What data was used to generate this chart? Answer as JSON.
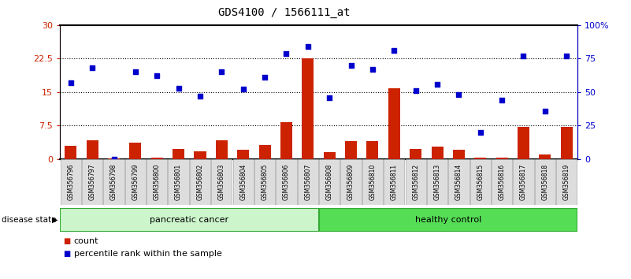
{
  "title": "GDS4100 / 1566111_at",
  "samples": [
    "GSM356796",
    "GSM356797",
    "GSM356798",
    "GSM356799",
    "GSM356800",
    "GSM356801",
    "GSM356802",
    "GSM356803",
    "GSM356804",
    "GSM356805",
    "GSM356806",
    "GSM356807",
    "GSM356808",
    "GSM356809",
    "GSM356810",
    "GSM356811",
    "GSM356812",
    "GSM356813",
    "GSM356814",
    "GSM356815",
    "GSM356816",
    "GSM356817",
    "GSM356818",
    "GSM356819"
  ],
  "counts": [
    3.0,
    4.2,
    0.1,
    3.6,
    0.3,
    2.3,
    1.7,
    4.2,
    2.1,
    3.1,
    8.2,
    22.5,
    1.6,
    4.1,
    4.0,
    15.8,
    2.3,
    2.8,
    2.1,
    0.3,
    0.4,
    7.2,
    1.1,
    7.2
  ],
  "percentiles": [
    57,
    68,
    0,
    65,
    62,
    53,
    47,
    65,
    52,
    61,
    79,
    84,
    46,
    70,
    67,
    81,
    51,
    56,
    48,
    20,
    44,
    77,
    36,
    77
  ],
  "ylim_left": [
    0,
    30
  ],
  "ylim_right": [
    0,
    100
  ],
  "yticks_left": [
    0,
    7.5,
    15.0,
    22.5,
    30
  ],
  "ytick_labels_left": [
    "0",
    "7.5",
    "15",
    "22.5",
    "30"
  ],
  "yticks_right": [
    0,
    25,
    50,
    75,
    100
  ],
  "ytick_labels_right": [
    "0",
    "25",
    "50",
    "75",
    "100%"
  ],
  "bar_color": "#cc2200",
  "dot_color": "#0000cc",
  "bar_width": 0.55,
  "pc_color": "#ccf5cc",
  "hc_color": "#55dd55",
  "border_color": "#33aa33",
  "legend_count_label": "count",
  "legend_pct_label": "percentile rank within the sample",
  "disease_state_label": "disease state",
  "pancreatic_cancer_label": "pancreatic cancer",
  "healthy_control_label": "healthy control",
  "n_pc": 12,
  "n_hc": 12
}
